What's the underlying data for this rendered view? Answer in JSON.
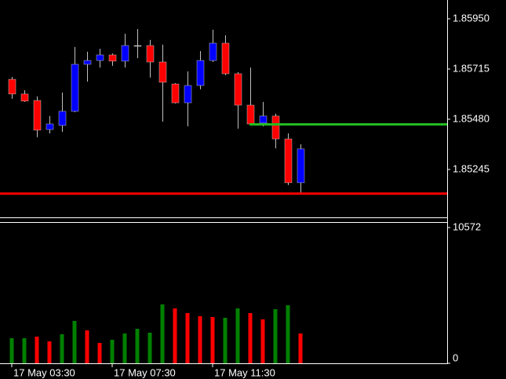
{
  "chart_data": [
    {
      "type": "candlestick",
      "categories": [
        "17 May 03:30",
        null,
        null,
        null,
        null,
        null,
        null,
        null,
        "17 May 07:30",
        null,
        null,
        null,
        null,
        null,
        null,
        null,
        "17 May 11:30",
        null,
        null,
        null,
        null,
        null,
        null,
        null
      ],
      "open": [
        1.85667,
        1.85598,
        1.85568,
        1.85432,
        1.85451,
        1.85517,
        1.85737,
        1.85755,
        1.85781,
        1.85752,
        1.85825,
        1.85825,
        1.85748,
        1.85645,
        1.85557,
        1.85638,
        1.85755,
        1.85836,
        1.85693,
        1.85546,
        1.85462,
        1.85495,
        1.85388,
        1.85183
      ],
      "high": [
        1.85678,
        1.85616,
        1.85587,
        1.85495,
        1.85605,
        1.85818,
        1.85796,
        1.8581,
        1.85788,
        1.8588,
        1.85902,
        1.85851,
        1.85829,
        1.85649,
        1.85704,
        1.85799,
        1.85899,
        1.85873,
        1.857,
        1.85722,
        1.85561,
        1.85506,
        1.85414,
        1.85363
      ],
      "low": [
        1.85576,
        1.85561,
        1.85396,
        1.85414,
        1.85421,
        1.85513,
        1.85656,
        1.85722,
        1.8573,
        1.85722,
        1.85766,
        1.85675,
        1.85469,
        1.85554,
        1.85447,
        1.8562,
        1.85748,
        1.85686,
        1.85436,
        1.85451,
        1.85447,
        1.85344,
        1.85172,
        1.85128
      ],
      "close": [
        1.85598,
        1.85565,
        1.85429,
        1.85458,
        1.85517,
        1.85737,
        1.85755,
        1.85781,
        1.85752,
        1.85825,
        1.85825,
        1.85748,
        1.85653,
        1.85557,
        1.85638,
        1.85755,
        1.85836,
        1.85693,
        1.85546,
        1.85458,
        1.85495,
        1.85388,
        1.85183,
        1.85341
      ],
      "up_color": "#0000ff",
      "down_color": "#ff0000",
      "wick_color": "#c0c0c0",
      "ylim": [
        1.85021,
        1.86038
      ],
      "yticks": [
        {
          "value": 1.8595,
          "label": "1.85950"
        },
        {
          "value": 1.85715,
          "label": "1.85715"
        },
        {
          "value": 1.8548,
          "label": "1.85480"
        },
        {
          "value": 1.85245,
          "label": "1.85245"
        }
      ],
      "hlines": [
        {
          "value": 1.85132,
          "color": "#ff0000"
        },
        {
          "value": 1.85456,
          "color": "#22bb22"
        }
      ]
    },
    {
      "type": "bar",
      "values": [
        1955,
        1955,
        2077,
        1711,
        2261,
        3300,
        2566,
        1589,
        1833,
        2322,
        2688,
        2383,
        4583,
        4277,
        3910,
        3666,
        3605,
        3544,
        4277,
        3910,
        3422,
        4216,
        4521,
        2322
      ],
      "colors": [
        "#008000",
        "#008000",
        "#ff0000",
        "#ff0000",
        "#008000",
        "#008000",
        "#ff0000",
        "#ff0000",
        "#008000",
        "#008000",
        "#008000",
        "#008000",
        "#008000",
        "#ff0000",
        "#ff0000",
        "#ff0000",
        "#ff0000",
        "#008000",
        "#008000",
        "#ff0000",
        "#ff0000",
        "#008000",
        "#008000",
        "#ff0000"
      ],
      "ylim": [
        0,
        10572
      ],
      "yticks": [
        10572,
        0
      ]
    }
  ]
}
